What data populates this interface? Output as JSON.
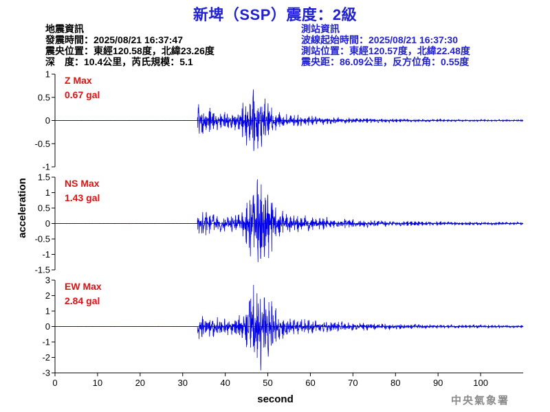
{
  "title": "新埤（SSP）震度：2級",
  "event_info": {
    "heading": "地震資訊",
    "origin_time": "發震時間：2025/08/21 16:37:47",
    "epicenter": "震央位置：東經120.58度，北緯23.26度",
    "depth_magnitude": "深　度：10.4公里，芮氏規模：5.1"
  },
  "station_info": {
    "heading": "測站資訊",
    "wave_start": "波線起始時間：2025/08/21 16:37:30",
    "station_location": "測站位置：東經120.57度，北緯22.48度",
    "distance": "震央距：86.09公里，反方位角：0.55度"
  },
  "agency": "中央氣象署",
  "colors": {
    "title": "#1f1fd6",
    "trace": "#0000ee",
    "max_label": "#e01010",
    "station_text": "#1f1fd6"
  },
  "chart_data": {
    "type": "line",
    "xlabel": "second",
    "ylabel": "acceleration",
    "xlim": [
      0,
      110
    ],
    "xticks": [
      0,
      10,
      20,
      30,
      40,
      50,
      60,
      70,
      80,
      90,
      100
    ],
    "panels": [
      {
        "name": "Z",
        "max_label": "Z Max",
        "max_value": "0.67 gal",
        "ylim": [
          -1,
          1
        ],
        "yticks": [
          -1,
          -0.5,
          0,
          0.5,
          1
        ],
        "peak": 0.67,
        "p_arrival": 33.5,
        "peak_time": 47
      },
      {
        "name": "NS",
        "max_label": "NS Max",
        "max_value": "1.43 gal",
        "ylim": [
          -1.5,
          1.5
        ],
        "yticks": [
          -1.5,
          -1,
          -0.5,
          0,
          0.5,
          1,
          1.5
        ],
        "peak": 1.43,
        "p_arrival": 33.5,
        "peak_time": 48
      },
      {
        "name": "EW",
        "max_label": "EW Max",
        "max_value": "2.84 gal",
        "ylim": [
          -3,
          3
        ],
        "yticks": [
          -3,
          -2,
          -1,
          0,
          1,
          2,
          3
        ],
        "peak": 2.84,
        "p_arrival": 33.5,
        "peak_time": 48
      }
    ]
  }
}
